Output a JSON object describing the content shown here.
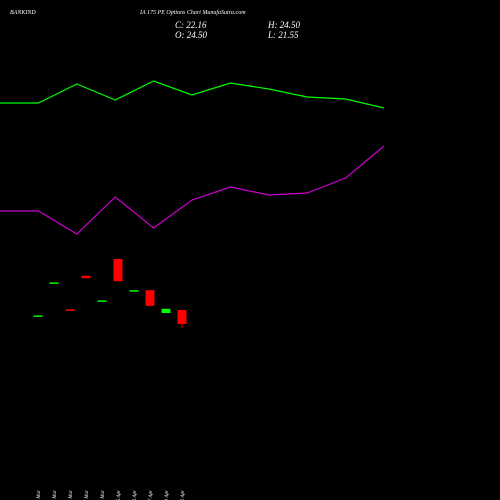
{
  "chart_data": {
    "type": "candlestick",
    "title": "BANKIND",
    "subtitle": "IA 175 PE Options  Chart MunafaSutra.com",
    "info": {
      "close": "C: 22.16",
      "high": "H: 24.50",
      "open": "O: 24.50",
      "low": "L: 21.55"
    },
    "categories": [
      "20 Mar",
      "24 Mar",
      "25 Mar",
      "27 Mar",
      "28 Mar",
      "15 Apr",
      "16 Apr",
      "17 Apr",
      "21 Apr",
      "22 Apr"
    ],
    "open": [
      23.5,
      29.0,
      24.6,
      30.2,
      26.0,
      33.0,
      27.7,
      27.8,
      24.0,
      24.5
    ],
    "high": [
      23.6,
      29.1,
      24.6,
      30.2,
      26.1,
      33.0,
      27.8,
      27.8,
      24.7,
      24.5
    ],
    "low": [
      23.5,
      29.0,
      24.5,
      29.8,
      26.0,
      29.3,
      27.7,
      25.2,
      24.0,
      21.55
    ],
    "close": [
      23.6,
      29.1,
      24.5,
      29.8,
      26.1,
      29.3,
      27.8,
      25.2,
      24.7,
      22.16
    ],
    "up_color": "#00ff00",
    "down_color": "#ff0000",
    "ylim": [
      -7.17,
      76.17
    ],
    "lines": [
      {
        "color": "#00ff00",
        "x": [
          0,
          38,
          76,
          114,
          152,
          190,
          228,
          266,
          304,
          342,
          380
        ],
        "values": [
          397,
          397,
          416,
          400,
          419,
          405,
          417,
          411,
          403,
          401,
          392
        ]
      },
      {
        "color": "#cc00cc",
        "x": [
          0,
          38,
          76,
          114,
          152,
          190,
          228,
          266,
          304,
          342,
          380
        ],
        "values": [
          289,
          289,
          266,
          303,
          272,
          300,
          313,
          305,
          307,
          322,
          354
        ]
      }
    ],
    "lines_ylim": [
      0,
      500
    ],
    "lines_xlim": [
      0,
      380
    ]
  }
}
